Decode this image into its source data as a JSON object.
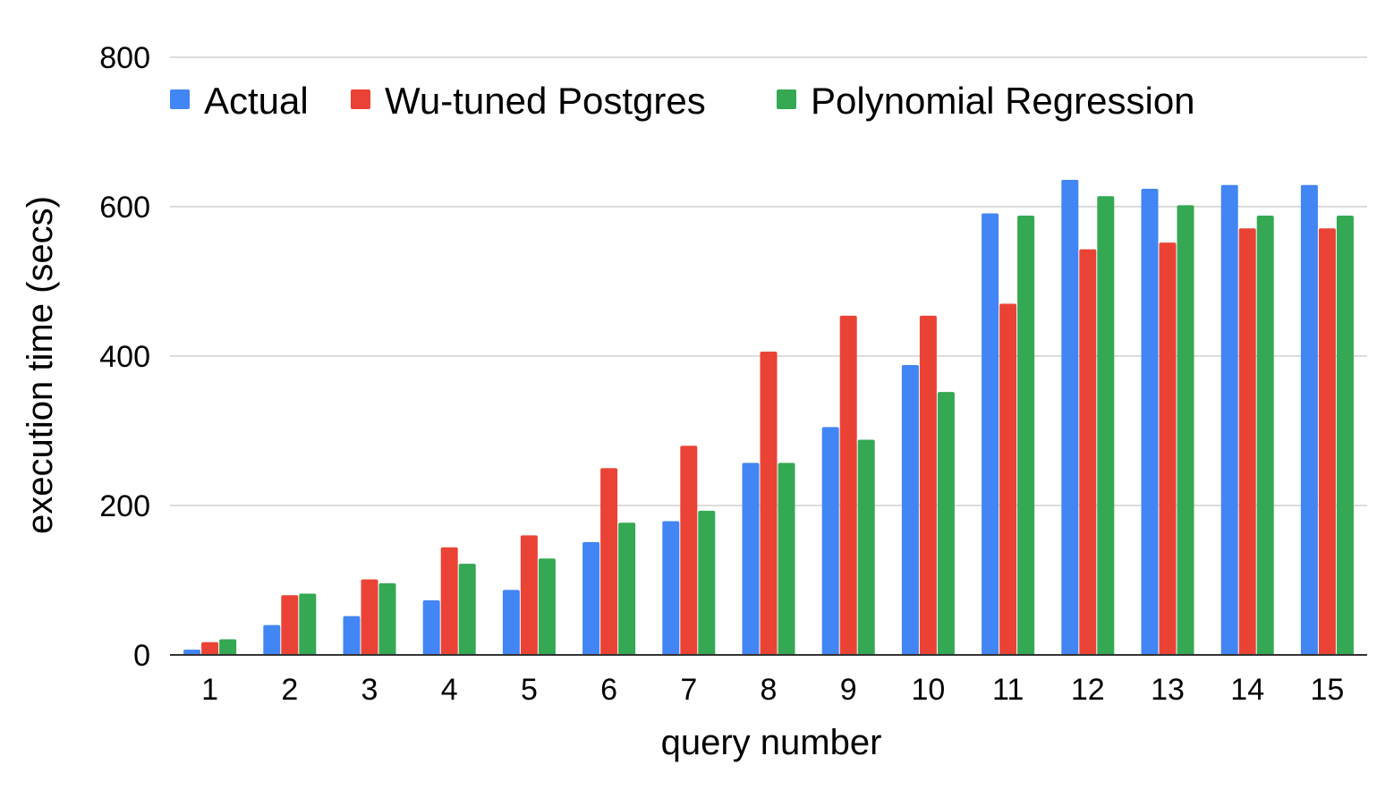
{
  "chart_data": {
    "type": "bar",
    "categories": [
      "1",
      "2",
      "3",
      "4",
      "5",
      "6",
      "7",
      "8",
      "9",
      "10",
      "11",
      "12",
      "13",
      "14",
      "15"
    ],
    "series": [
      {
        "name": "Actual",
        "color": "#4285f4",
        "values": [
          7,
          40,
          52,
          73,
          87,
          151,
          179,
          257,
          305,
          388,
          591,
          636,
          624,
          629,
          629
        ]
      },
      {
        "name": "Wu-tuned Postgres",
        "color": "#ea4335",
        "values": [
          17,
          80,
          101,
          144,
          160,
          250,
          280,
          406,
          454,
          454,
          470,
          543,
          552,
          571,
          571
        ]
      },
      {
        "name": "Polynomial Regression",
        "color": "#34a853",
        "values": [
          21,
          82,
          96,
          122,
          129,
          177,
          193,
          257,
          288,
          352,
          588,
          614,
          602,
          588,
          588
        ]
      }
    ],
    "xlabel": "query number",
    "ylabel": "execution time (secs)",
    "ylim": [
      0,
      800
    ],
    "yticks": [
      "0",
      "200",
      "400",
      "600",
      "800"
    ],
    "grid": true,
    "legend_position": "top"
  }
}
